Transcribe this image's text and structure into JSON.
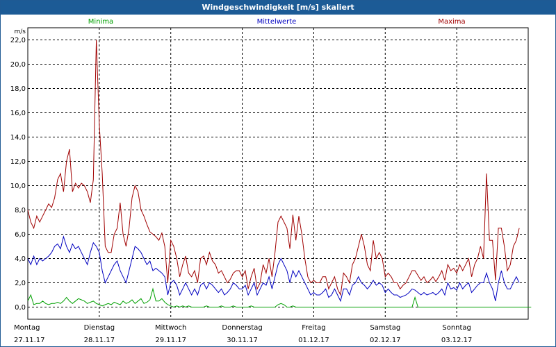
{
  "window": {
    "title": "Windgeschwindigkeit [m/s] skaliert"
  },
  "colors": {
    "min": "#00a000",
    "mean": "#0000c0",
    "max": "#a00000",
    "grid": "#000000"
  },
  "chart_data": {
    "type": "line",
    "title": "Windgeschwindigkeit [m/s] skaliert",
    "ylabel": "m/s",
    "ylim": [
      -1,
      23
    ],
    "yticks": [
      "0,0",
      "2,0",
      "4,0",
      "6,0",
      "8,0",
      "10,0",
      "12,0",
      "14,0",
      "16,0",
      "18,0",
      "20,0",
      "22,0"
    ],
    "ytick_values": [
      0,
      2,
      4,
      6,
      8,
      10,
      12,
      14,
      16,
      18,
      20,
      22
    ],
    "x_points": 168,
    "days": [
      {
        "name": "Montag",
        "date": "27.11.17",
        "start": 0
      },
      {
        "name": "Dienstag",
        "date": "28.11.17",
        "start": 24
      },
      {
        "name": "Mittwoch",
        "date": "29.11.17",
        "start": 48
      },
      {
        "name": "Donnerstag",
        "date": "30.11.17",
        "start": 72
      },
      {
        "name": "Freitag",
        "date": "01.12.17",
        "start": 96
      },
      {
        "name": "Samstag",
        "date": "02.12.17",
        "start": 120
      },
      {
        "name": "Sonntag",
        "date": "03.12.17",
        "start": 144
      }
    ],
    "legend": {
      "min": "Minima",
      "mean": "Mittelwerte",
      "max": "Maxima"
    },
    "series": [
      {
        "name": "Maxima",
        "values": [
          8.0,
          7.0,
          6.5,
          7.5,
          7.0,
          7.5,
          8.0,
          8.5,
          8.2,
          9.0,
          10.5,
          11.0,
          9.5,
          12.0,
          13.0,
          9.5,
          10.2,
          9.8,
          10.2,
          10.0,
          9.5,
          8.6,
          10.5,
          22.0,
          15.0,
          11.0,
          5.0,
          4.5,
          4.5,
          6.0,
          6.5,
          8.6,
          6.0,
          5.0,
          6.5,
          9.0,
          10.0,
          9.5,
          8.0,
          7.5,
          6.8,
          6.2,
          6.0,
          5.8,
          5.5,
          6.1,
          5.0,
          2.0,
          5.5,
          5.0,
          4.0,
          2.5,
          3.5,
          4.2,
          2.8,
          2.5,
          3.0,
          2.0,
          4.0,
          4.2,
          3.5,
          4.5,
          3.8,
          3.5,
          2.8,
          3.0,
          2.5,
          2.0,
          2.3,
          2.8,
          3.0,
          3.0,
          2.5,
          3.0,
          1.5,
          2.5,
          3.2,
          1.5,
          2.0,
          3.5,
          2.8,
          4.0,
          2.5,
          4.5,
          7.0,
          7.5,
          7.0,
          6.5,
          4.8,
          7.6,
          5.5,
          7.5,
          6.0,
          4.0,
          2.5,
          2.0,
          2.2,
          2.0,
          2.0,
          2.5,
          2.5,
          1.5,
          2.0,
          2.5,
          1.5,
          1.0,
          2.8,
          2.5,
          2.0,
          3.5,
          4.0,
          5.0,
          6.0,
          5.0,
          3.5,
          3.0,
          5.5,
          4.0,
          4.5,
          4.0,
          2.5,
          2.8,
          2.5,
          2.0,
          2.0,
          1.5,
          1.8,
          2.0,
          2.5,
          3.0,
          3.0,
          2.6,
          2.2,
          2.5,
          2.0,
          2.2,
          2.5,
          2.1,
          2.5,
          3.0,
          2.2,
          3.5,
          3.0,
          3.2,
          2.8,
          3.5,
          3.0,
          3.5,
          4.0,
          2.5,
          3.5,
          4.0,
          5.0,
          4.0,
          11.0,
          5.5,
          5.5,
          2.2,
          6.5,
          6.5,
          5.0,
          3.0,
          3.5,
          5.0,
          5.5,
          6.5
        ]
      },
      {
        "name": "Mittelwerte",
        "values": [
          4.0,
          3.5,
          4.2,
          3.5,
          4.0,
          3.8,
          4.0,
          4.2,
          4.5,
          5.0,
          5.2,
          4.8,
          5.8,
          5.0,
          4.5,
          5.2,
          4.8,
          5.0,
          4.5,
          4.0,
          3.5,
          4.5,
          5.3,
          5.0,
          4.5,
          3.0,
          2.0,
          2.5,
          3.0,
          3.5,
          3.8,
          3.0,
          2.5,
          2.0,
          3.0,
          4.0,
          5.0,
          4.8,
          4.5,
          4.0,
          3.5,
          3.8,
          3.0,
          3.2,
          3.0,
          2.8,
          2.5,
          1.0,
          2.0,
          2.2,
          1.8,
          1.0,
          1.5,
          2.0,
          1.5,
          1.0,
          1.5,
          1.0,
          1.8,
          2.0,
          1.5,
          2.0,
          1.8,
          1.5,
          1.2,
          1.5,
          1.0,
          1.2,
          1.5,
          2.0,
          1.8,
          1.5,
          1.5,
          1.8,
          1.0,
          1.5,
          2.0,
          1.0,
          1.5,
          2.0,
          1.8,
          2.5,
          1.5,
          2.5,
          3.5,
          4.0,
          3.5,
          3.0,
          2.0,
          3.0,
          2.5,
          3.0,
          2.5,
          2.0,
          1.5,
          1.0,
          1.2,
          1.0,
          1.0,
          1.2,
          1.5,
          0.8,
          1.0,
          1.5,
          1.0,
          0.5,
          1.5,
          1.5,
          1.0,
          1.8,
          2.0,
          2.5,
          2.0,
          1.8,
          1.5,
          1.8,
          2.2,
          1.8,
          2.0,
          1.8,
          1.2,
          1.5,
          1.2,
          1.0,
          1.0,
          0.8,
          0.9,
          1.0,
          1.2,
          1.5,
          1.4,
          1.2,
          1.0,
          1.2,
          1.0,
          1.1,
          1.2,
          1.0,
          1.2,
          1.5,
          1.0,
          2.0,
          1.5,
          1.6,
          1.4,
          2.0,
          1.5,
          1.8,
          2.0,
          1.2,
          1.5,
          1.8,
          2.0,
          2.0,
          2.8,
          2.0,
          1.5,
          0.5,
          2.0,
          3.0,
          2.0,
          1.5,
          1.5,
          2.0,
          2.5,
          2.0
        ]
      },
      {
        "name": "Minima",
        "values": [
          0.5,
          1.0,
          0.2,
          0.3,
          0.3,
          0.5,
          0.3,
          0.2,
          0.3,
          0.3,
          0.4,
          0.3,
          0.5,
          0.8,
          0.5,
          0.3,
          0.5,
          0.7,
          0.6,
          0.5,
          0.3,
          0.4,
          0.5,
          0.3,
          0.2,
          0.1,
          0.2,
          0.3,
          0.2,
          0.4,
          0.3,
          0.2,
          0.5,
          0.3,
          0.4,
          0.6,
          0.3,
          0.5,
          0.7,
          0.3,
          0.4,
          0.6,
          1.5,
          0.5,
          0.5,
          0.7,
          0.4,
          0.2,
          0.1,
          0.0,
          0.1,
          0.0,
          0.1,
          0.0,
          0.1,
          0.0,
          0.0,
          0.0,
          0.0,
          0.0,
          0.1,
          0.0,
          0.0,
          0.0,
          0.0,
          0.1,
          0.0,
          0.0,
          0.0,
          0.1,
          0.0,
          0.0,
          0.0,
          0.0,
          0.0,
          0.1,
          0.0,
          0.0,
          0.0,
          0.0,
          0.0,
          0.0,
          0.0,
          0.0,
          0.2,
          0.3,
          0.2,
          0.0,
          0.0,
          0.1,
          0.0,
          0.0,
          0.0,
          0.0,
          0.0,
          0.0,
          0.0,
          0.0,
          0.0,
          0.0,
          0.0,
          0.0,
          0.0,
          0.0,
          0.0,
          0.0,
          0.0,
          0.0,
          0.0,
          0.0,
          0.0,
          0.0,
          0.0,
          0.0,
          0.0,
          0.0,
          0.0,
          0.0,
          0.0,
          0.0,
          0.0,
          0.0,
          0.0,
          0.0,
          0.0,
          0.0,
          0.0,
          0.0,
          0.0,
          0.0,
          0.8,
          0.0,
          0.0,
          0.0,
          0.0,
          0.0,
          0.0,
          0.0,
          0.0,
          0.0,
          0.0,
          0.0,
          0.0,
          0.0,
          0.0,
          0.0,
          0.0,
          0.0,
          0.0,
          0.0,
          0.0,
          0.0,
          0.0,
          0.0,
          0.0,
          0.0,
          0.0,
          0.0,
          0.0,
          0.0,
          0.0,
          0.0,
          0.0,
          0.0,
          0.0,
          0.0,
          0.0,
          0.0,
          0.0,
          0.0
        ]
      }
    ]
  }
}
